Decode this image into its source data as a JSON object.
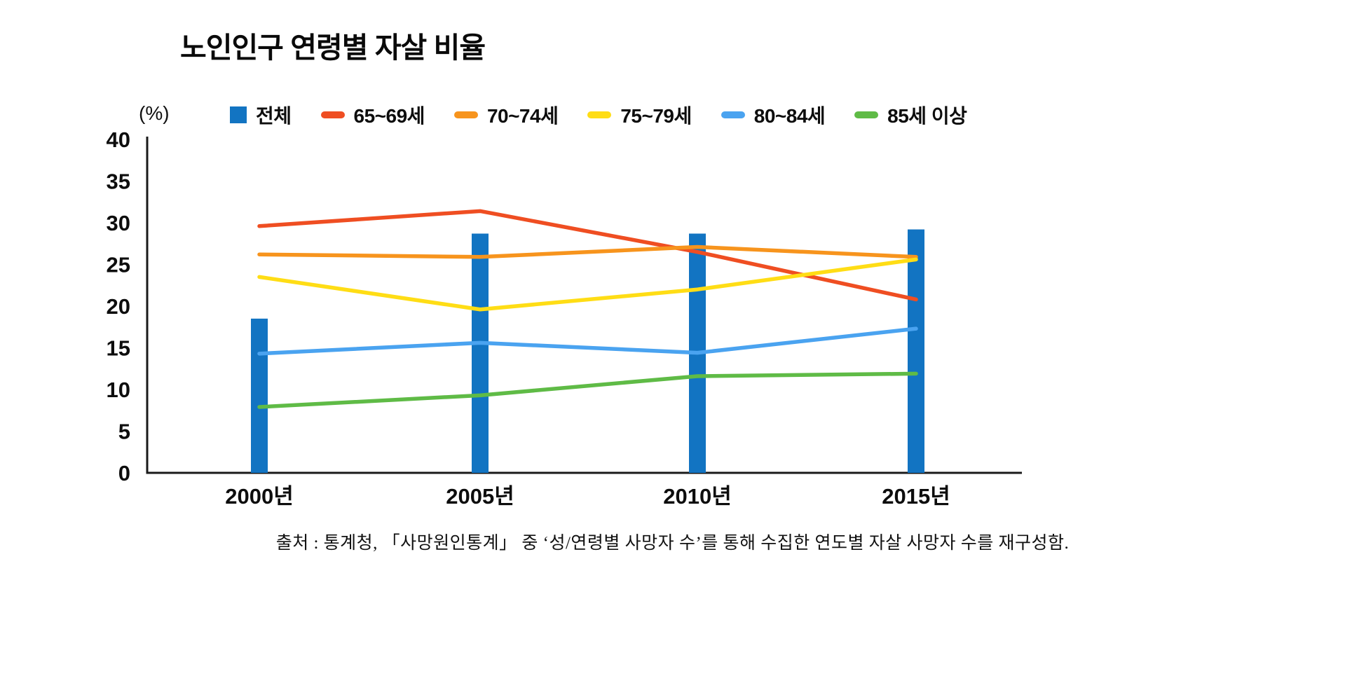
{
  "title": "노인인구 연령별 자살 비율",
  "y_unit_label": "(%)",
  "source": "출처 : 통계청, 「사망원인통계」 중 ‘성/연령별 사망자 수’를 통해 수집한 연도별 자살 사망자 수를 재구성함.",
  "colors": {
    "total_bar": "#1274C2",
    "age_65_69": "#EF4E22",
    "age_70_74": "#F7941D",
    "age_75_79": "#FFDD15",
    "age_80_84": "#4AA3F0",
    "age_85_plus": "#5FBB46",
    "axis": "#1a1a1a",
    "text": "#0d0d0d"
  },
  "chart_data": {
    "type": "combo",
    "title": "노인인구 연령별 자살 비율",
    "categories": [
      "2000년",
      "2005년",
      "2010년",
      "2015년"
    ],
    "series": [
      {
        "name": "전체",
        "kind": "bar",
        "color": "#1274C2",
        "values": [
          18.5,
          28.7,
          28.7,
          29.2
        ]
      },
      {
        "name": "65~69세",
        "kind": "line",
        "color": "#EF4E22",
        "values": [
          29.6,
          31.4,
          26.5,
          20.8
        ]
      },
      {
        "name": "70~74세",
        "kind": "line",
        "color": "#F7941D",
        "values": [
          26.2,
          25.9,
          27.1,
          25.9
        ]
      },
      {
        "name": "75~79세",
        "kind": "line",
        "color": "#FFDD15",
        "values": [
          23.5,
          19.6,
          22.0,
          25.6
        ]
      },
      {
        "name": "80~84세",
        "kind": "line",
        "color": "#4AA3F0",
        "values": [
          14.3,
          15.6,
          14.4,
          17.3
        ]
      },
      {
        "name": "85세 이상",
        "kind": "line",
        "color": "#5FBB46",
        "values": [
          7.9,
          9.3,
          11.6,
          11.9
        ]
      }
    ],
    "xlabel": "",
    "ylabel": "(%)",
    "ylim": [
      0,
      40
    ],
    "yticks": [
      0,
      5,
      10,
      15,
      20,
      25,
      30,
      35,
      40
    ],
    "grid": false,
    "legend_position": "top"
  }
}
